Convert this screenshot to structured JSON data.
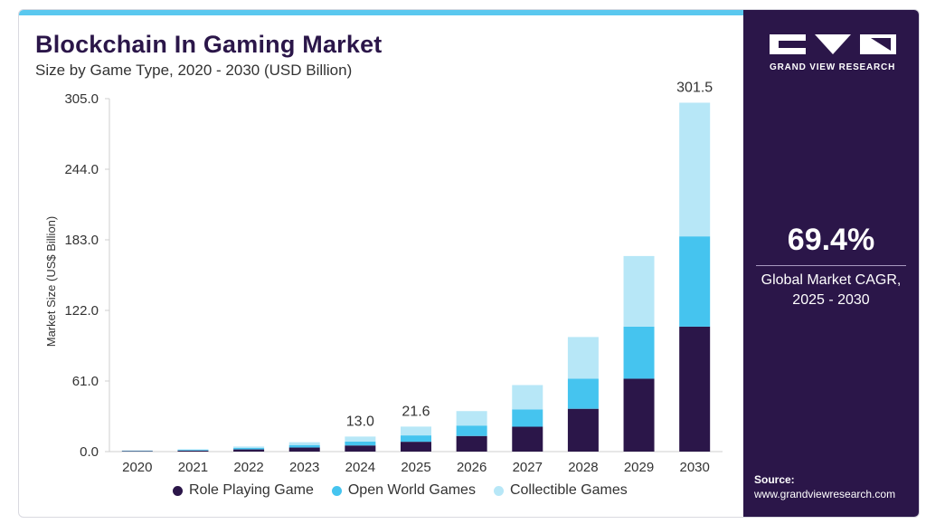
{
  "header": {
    "title": "Blockchain In Gaming Market",
    "subtitle": "Size by Game Type, 2020 - 2030 (USD Billion)"
  },
  "sidebar": {
    "logo_text": "GRAND VIEW RESEARCH",
    "cagr_value": "69.4%",
    "cagr_label_line1": "Global Market CAGR,",
    "cagr_label_line2": "2025 - 2030",
    "source_label": "Source:",
    "source_url": "www.grandviewresearch.com"
  },
  "colors": {
    "role_playing": "#2b1649",
    "open_world": "#45c4ef",
    "collectible": "#b7e7f7",
    "brand_dark": "#2b1649",
    "accent_bar": "#5ac8ef"
  },
  "chart_data": {
    "type": "bar",
    "stacked": true,
    "title": "Blockchain In Gaming Market",
    "subtitle": "Size by Game Type, 2020 - 2030 (USD Billion)",
    "xlabel": "",
    "ylabel": "Market Size (US$ Billion)",
    "ylim": [
      0,
      305
    ],
    "yticks": [
      "0.0",
      "61.0",
      "122.0",
      "183.0",
      "244.0",
      "305.0"
    ],
    "categories": [
      "2020",
      "2021",
      "2022",
      "2023",
      "2024",
      "2025",
      "2026",
      "2027",
      "2028",
      "2029",
      "2030"
    ],
    "series": [
      {
        "name": "Role Playing Game",
        "values": [
          0.4,
          0.9,
          1.9,
          3.5,
          5.3,
          8.5,
          13.5,
          21.5,
          37.0,
          63.0,
          108.0
        ]
      },
      {
        "name": "Open World Games",
        "values": [
          0.3,
          0.6,
          1.2,
          2.2,
          3.4,
          5.5,
          9.0,
          15.0,
          26.0,
          45.0,
          78.0
        ]
      },
      {
        "name": "Collectible Games",
        "values": [
          0.3,
          0.6,
          1.3,
          2.4,
          4.3,
          7.6,
          12.5,
          21.0,
          36.0,
          61.0,
          115.5
        ]
      }
    ],
    "data_labels": [
      {
        "category": "2024",
        "text": "13.0"
      },
      {
        "category": "2025",
        "text": "21.6"
      },
      {
        "category": "2030",
        "text": "301.5"
      }
    ],
    "grid": false,
    "legend_position": "bottom"
  }
}
